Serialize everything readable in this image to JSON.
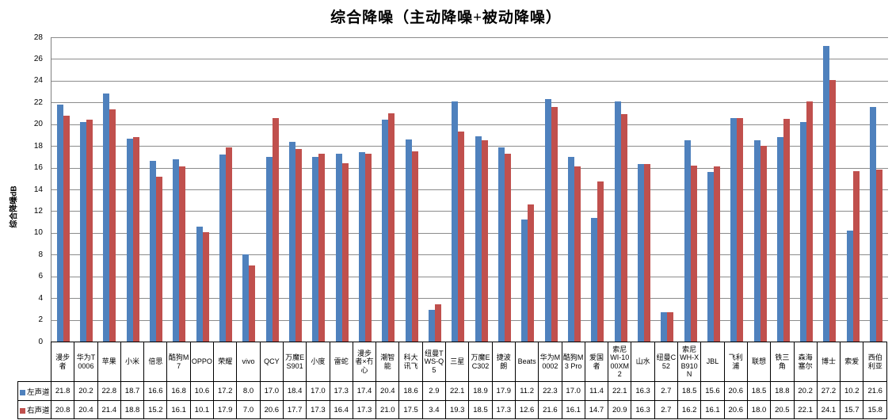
{
  "title": "综合降噪（主动降噪+被动降噪）",
  "chart_data": {
    "type": "bar",
    "title": "综合降噪（主动降噪+被动降噪）",
    "xlabel": "",
    "ylabel": "综合降噪dB",
    "ylim": [
      0,
      28
    ],
    "ytick_interval": 2,
    "grid": true,
    "legend_position": "data-table-left",
    "value_format": "0.0",
    "colors": {
      "left_channel": "#4F81BD",
      "right_channel": "#C0504D",
      "gridline": "#8C8C8C",
      "table_border": "#000000"
    },
    "categories": [
      "漫步者",
      "华为T0006",
      "苹果",
      "小米",
      "倍思",
      "酷狗M7",
      "OPPO",
      "荣耀",
      "vivo",
      "QCY",
      "万魔ES901",
      "小度",
      "雷蛇",
      "漫步者×冇心",
      "潮智能",
      "科大讯飞",
      "纽曼TWS-Q5",
      "三星",
      "万魔EC302",
      "捷波朗",
      "Beats",
      "华为M0002",
      "酷狗M3 Pro",
      "爱国者",
      "索尼WI-1000XM2",
      "山水",
      "纽曼C52",
      "索尼WH-XB910N",
      "JBL",
      "飞利浦",
      "联想",
      "铁三角",
      "森海塞尔",
      "博士",
      "索爱",
      "西伯利亚"
    ],
    "series": [
      {
        "name": "左声道",
        "color": "#4F81BD",
        "values": [
          21.8,
          20.2,
          22.8,
          18.7,
          16.6,
          16.8,
          10.6,
          17.2,
          8.0,
          17.0,
          18.4,
          17.0,
          17.3,
          17.4,
          20.4,
          18.6,
          2.9,
          22.1,
          18.9,
          17.9,
          11.2,
          22.3,
          17.0,
          11.4,
          22.1,
          16.3,
          2.7,
          18.5,
          15.6,
          20.6,
          18.5,
          18.8,
          20.2,
          27.2,
          10.2,
          21.6
        ]
      },
      {
        "name": "右声道",
        "color": "#C0504D",
        "values": [
          20.8,
          20.4,
          21.4,
          18.8,
          15.2,
          16.1,
          10.1,
          17.9,
          7.0,
          20.6,
          17.7,
          17.3,
          16.4,
          17.3,
          21.0,
          17.5,
          3.4,
          19.3,
          18.5,
          17.3,
          12.6,
          21.6,
          16.1,
          14.7,
          20.9,
          16.3,
          2.7,
          16.2,
          16.1,
          20.6,
          18.0,
          20.5,
          22.1,
          24.1,
          15.7,
          15.8
        ]
      }
    ]
  }
}
